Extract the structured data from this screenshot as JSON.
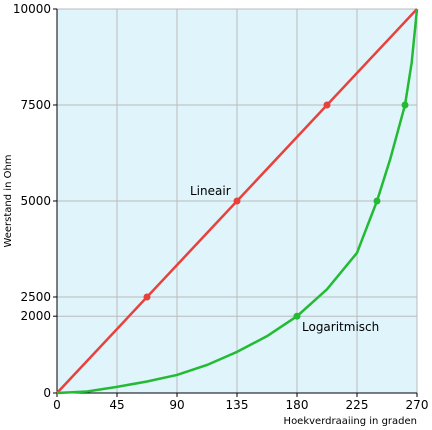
{
  "chart_data": {
    "type": "line",
    "x_label": "Hoekverdraaiing in graden",
    "y_label": "Weerstand in Ohm",
    "xlim": [
      0,
      270
    ],
    "xticks": [
      0,
      45,
      90,
      135,
      180,
      225,
      270
    ],
    "ylim": [
      0,
      10000
    ],
    "yticks": [
      0,
      2000,
      2500,
      5000,
      7500,
      10000
    ],
    "grid": true,
    "background": "#e0f4fb",
    "series": [
      {
        "name": "Lineair",
        "color": "#e8413c",
        "x": [
          0,
          270
        ],
        "values": [
          0,
          10000
        ],
        "marker_x": [
          67.5,
          135,
          202.5
        ],
        "marker_values": [
          2500,
          5000,
          7500
        ]
      },
      {
        "name": "Logaritmisch",
        "color": "#22bb33",
        "x": [
          0,
          22.5,
          45,
          67.5,
          90,
          112.5,
          135,
          157.5,
          180,
          202.5,
          225,
          240,
          250,
          261,
          266,
          270
        ],
        "values": [
          0,
          40,
          160,
          300,
          470,
          730,
          1070,
          1480,
          2000,
          2700,
          3650,
          5000,
          6100,
          7500,
          8600,
          10000
        ],
        "marker_x": [
          180,
          240,
          261
        ],
        "marker_values": [
          2000,
          5000,
          7500
        ]
      }
    ]
  }
}
